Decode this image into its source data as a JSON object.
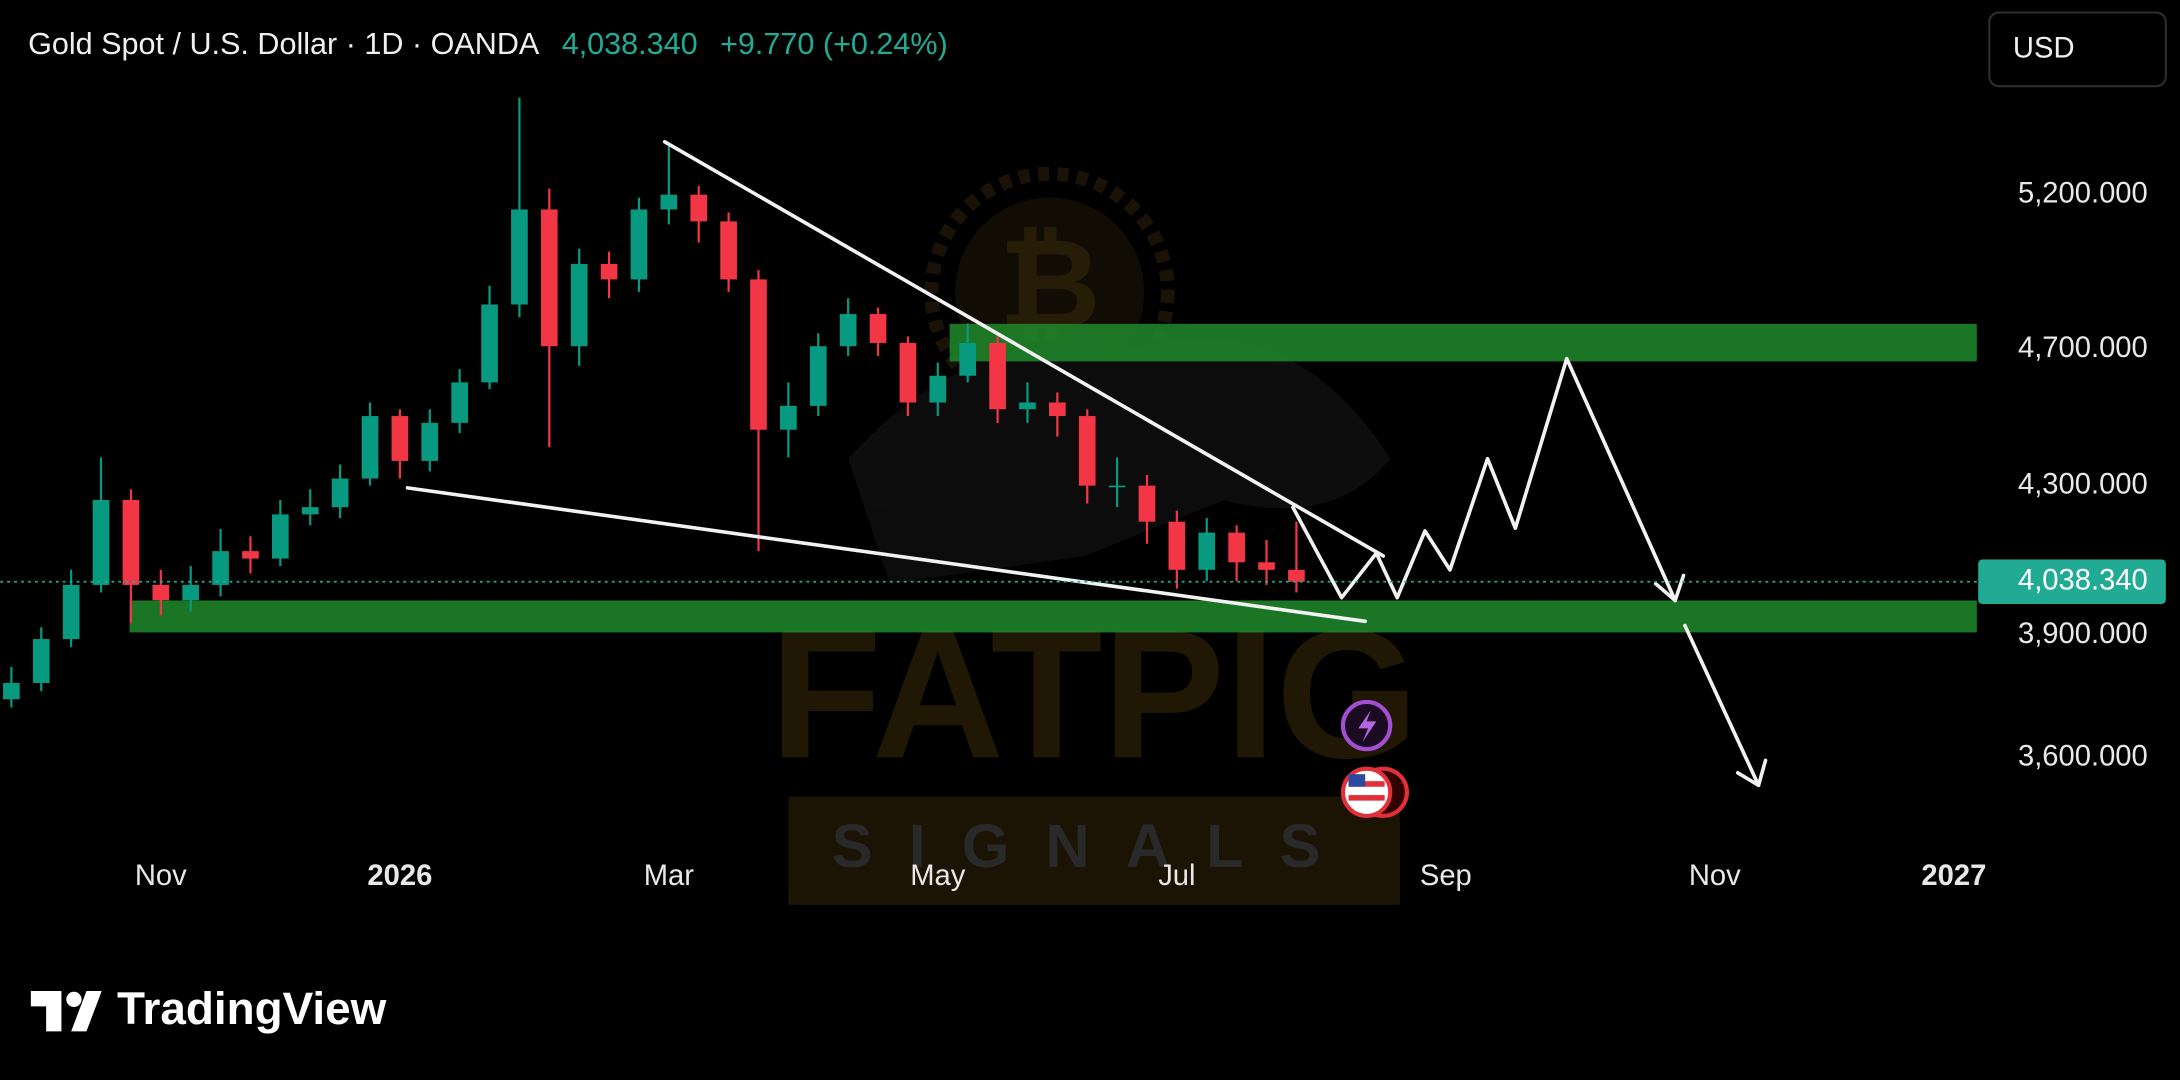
{
  "chart_data": {
    "type": "candlestick",
    "title": "Gold Spot / U.S. Dollar · 1D · OANDA",
    "change": "+9.770 (+0.24%)",
    "currency": "USD",
    "last_price": {
      "value": 4038.34,
      "label": "4,038.340"
    },
    "log_scale": true,
    "grid": false,
    "up_color": "#089981",
    "down_color": "#f23645",
    "ylim": [
      3425,
      5592
    ],
    "yticks": [
      {
        "value": 5200,
        "label": "5,200.000"
      },
      {
        "value": 4700,
        "label": "4,700.000"
      },
      {
        "value": 4300,
        "label": "4,300.000"
      },
      {
        "value": 3900,
        "label": "3,900.000"
      },
      {
        "value": 3600,
        "label": "3,600.000"
      }
    ],
    "categories": [
      null,
      null,
      null,
      null,
      null,
      "Nov",
      null,
      null,
      null,
      null,
      null,
      null,
      null,
      "2026",
      null,
      null,
      null,
      null,
      null,
      null,
      null,
      null,
      "Mar",
      null,
      null,
      null,
      null,
      null,
      null,
      null,
      null,
      "May",
      null,
      null,
      null,
      null,
      null,
      null,
      null,
      "Jul",
      null,
      null,
      null,
      null,
      null,
      null,
      null,
      null,
      "Sep",
      null,
      null,
      null,
      null,
      null,
      null,
      null,
      null,
      "Nov",
      null,
      null,
      null,
      null,
      null,
      null,
      null,
      "2027"
    ],
    "open": [
      3740,
      3780,
      3890,
      4030,
      4260,
      4030,
      3990,
      4030,
      4120,
      4100,
      4220,
      4240,
      4320,
      4500,
      4370,
      4480,
      4600,
      4840,
      5150,
      4710,
      4970,
      4920,
      5150,
      5200,
      5110,
      4920,
      4460,
      4530,
      4710,
      4810,
      4720,
      4540,
      4620,
      4720,
      4520,
      4540,
      4500,
      4300,
      4300,
      4200,
      4070,
      4170,
      4090,
      4070,
      null,
      null,
      null,
      null,
      null,
      null,
      null,
      null,
      null,
      null,
      null,
      null,
      null,
      null,
      null,
      null,
      null,
      null,
      null,
      null,
      null,
      null
    ],
    "high": [
      3820,
      3920,
      4070,
      4380,
      4290,
      4070,
      4080,
      4180,
      4160,
      4260,
      4290,
      4360,
      4540,
      4520,
      4520,
      4640,
      4900,
      5540,
      5220,
      5020,
      5010,
      5190,
      5370,
      5230,
      5140,
      4950,
      4600,
      4750,
      4860,
      4830,
      4740,
      4660,
      4780,
      4740,
      4600,
      4570,
      4520,
      4380,
      4330,
      4230,
      4210,
      4190,
      4150,
      4200,
      null,
      null,
      null,
      null,
      null,
      null,
      null,
      null,
      null,
      null,
      null,
      null,
      null,
      null,
      null,
      null,
      null,
      null,
      null,
      null,
      null,
      null
    ],
    "low": [
      3720,
      3760,
      3870,
      4010,
      3930,
      3950,
      3960,
      4000,
      4060,
      4080,
      4190,
      4210,
      4300,
      4320,
      4340,
      4450,
      4580,
      4800,
      4410,
      4650,
      4860,
      4880,
      5100,
      5040,
      4880,
      4120,
      4380,
      4500,
      4680,
      4680,
      4500,
      4500,
      4600,
      4480,
      4480,
      4440,
      4250,
      4240,
      4140,
      4020,
      4040,
      4040,
      4030,
      4010,
      null,
      null,
      null,
      null,
      null,
      null,
      null,
      null,
      null,
      null,
      null,
      null,
      null,
      null,
      null,
      null,
      null,
      null,
      null,
      null,
      null,
      null
    ],
    "close": [
      3780,
      3890,
      4030,
      4260,
      4030,
      3990,
      4030,
      4120,
      4100,
      4220,
      4240,
      4320,
      4500,
      4370,
      4480,
      4600,
      4840,
      5150,
      4710,
      4970,
      4920,
      5150,
      5200,
      5110,
      4920,
      4460,
      4530,
      4710,
      4810,
      4720,
      4540,
      4620,
      4720,
      4520,
      4540,
      4500,
      4300,
      4300,
      4200,
      4070,
      4170,
      4090,
      4070,
      4038.34,
      null,
      null,
      null,
      null,
      null,
      null,
      null,
      null,
      null,
      null,
      null,
      null,
      null,
      null,
      null,
      null,
      null,
      null,
      null,
      null,
      null,
      null
    ]
  },
  "watermark": {
    "brand": "FATPIG",
    "tagline": "SIGNALS"
  },
  "footer": {
    "logo": "TradingView"
  }
}
